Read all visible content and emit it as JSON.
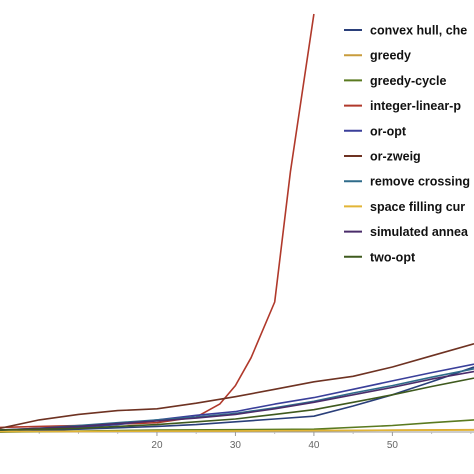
{
  "chart_data": {
    "type": "line",
    "title": "",
    "xlabel": "",
    "ylabel": "",
    "xlim": [
      0,
      60.4
    ],
    "ylim": [
      0,
      45
    ],
    "x_ticks": [
      20,
      30,
      40,
      50
    ],
    "x_tick_labels": [
      "20",
      "30",
      "40",
      "50"
    ],
    "grid": false,
    "legend_position": "top-right",
    "series": [
      {
        "name": "convex hull, che",
        "color": "#2a3f7a",
        "x": [
          0,
          5,
          10,
          15,
          20,
          25,
          30,
          35,
          40,
          45,
          50,
          55,
          60.4
        ],
        "y": [
          0,
          0.15,
          0.3,
          0.45,
          0.6,
          0.8,
          1.1,
          1.4,
          1.7,
          2.8,
          4.0,
          5.4,
          7.0
        ]
      },
      {
        "name": "greedy",
        "color": "#c89c3c",
        "x": [
          0,
          10,
          20,
          30,
          40,
          50,
          60.4
        ],
        "y": [
          0,
          0.05,
          0.1,
          0.12,
          0.15,
          0.2,
          0.25
        ]
      },
      {
        "name": "greedy-cycle",
        "color": "#5a7a20",
        "x": [
          0,
          10,
          20,
          30,
          40,
          50,
          55,
          60.4
        ],
        "y": [
          0,
          0.1,
          0.2,
          0.25,
          0.3,
          0.7,
          1.0,
          1.3
        ]
      },
      {
        "name": "integer-linear-p",
        "color": "#b0392b",
        "x": [
          0,
          5,
          10,
          15,
          20,
          25,
          28,
          30,
          32,
          35,
          37,
          40
        ],
        "y": [
          0.5,
          0.6,
          0.7,
          0.85,
          1.0,
          1.6,
          3.0,
          5.0,
          8.0,
          14.0,
          28.0,
          45.0
        ]
      },
      {
        "name": "or-opt",
        "color": "#3a3f9a",
        "x": [
          0,
          5,
          10,
          15,
          20,
          25,
          30,
          35,
          40,
          45,
          50,
          55,
          60.4
        ],
        "y": [
          0.2,
          0.3,
          0.5,
          0.8,
          1.3,
          1.8,
          2.2,
          3.0,
          3.7,
          4.6,
          5.5,
          6.4,
          7.3
        ]
      },
      {
        "name": "or-zweig",
        "color": "#6e3222",
        "x": [
          0,
          5,
          10,
          15,
          20,
          25,
          30,
          35,
          40,
          45,
          50,
          55,
          60.4
        ],
        "y": [
          0.4,
          1.3,
          1.9,
          2.3,
          2.5,
          3.1,
          3.8,
          4.6,
          5.4,
          6.0,
          7.0,
          8.2,
          9.5
        ]
      },
      {
        "name": "remove crossing",
        "color": "#2f6b8a",
        "x": [
          0,
          5,
          10,
          15,
          20,
          25,
          30,
          35,
          40,
          45,
          50,
          55,
          60.4
        ],
        "y": [
          0.2,
          0.4,
          0.7,
          1.0,
          1.3,
          1.6,
          2.0,
          2.6,
          3.3,
          4.2,
          5.0,
          5.9,
          6.8
        ]
      },
      {
        "name": "space filling cur",
        "color": "#e2b536",
        "x": [
          0,
          10,
          20,
          30,
          40,
          50,
          60.4
        ],
        "y": [
          0.05,
          0.08,
          0.1,
          0.12,
          0.15,
          0.18,
          0.2
        ]
      },
      {
        "name": "simulated annea",
        "color": "#4a2c6a",
        "x": [
          0,
          5,
          10,
          15,
          20,
          25,
          30,
          35,
          40,
          45,
          50,
          55,
          60.4
        ],
        "y": [
          0.2,
          0.4,
          0.6,
          0.9,
          1.2,
          1.5,
          1.9,
          2.5,
          3.2,
          4.0,
          4.8,
          5.7,
          6.5
        ]
      },
      {
        "name": "two-opt",
        "color": "#3f5a1e",
        "x": [
          0,
          5,
          10,
          15,
          20,
          25,
          30,
          35,
          40,
          45,
          50,
          55,
          60.4
        ],
        "y": [
          0.2,
          0.3,
          0.4,
          0.6,
          0.8,
          1.1,
          1.4,
          1.9,
          2.4,
          3.2,
          4.0,
          4.9,
          5.8
        ]
      }
    ]
  }
}
